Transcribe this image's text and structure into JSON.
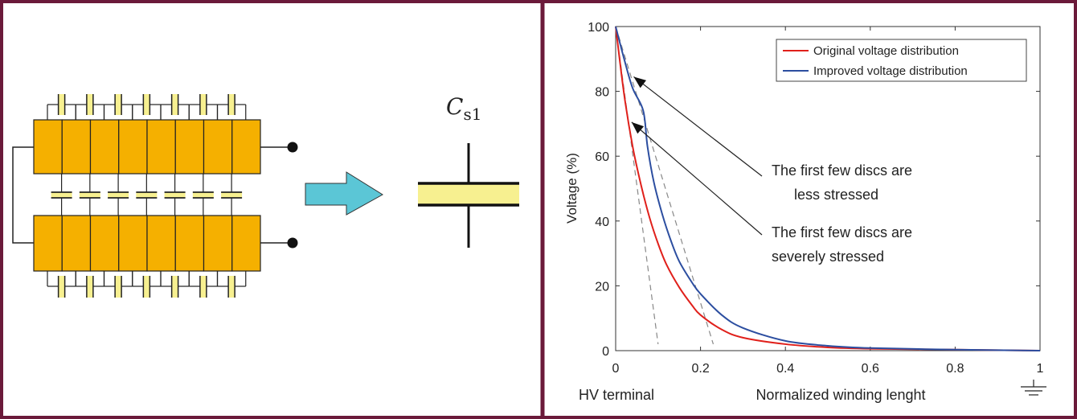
{
  "colors": {
    "frame": "#6b1a3a",
    "disc_fill": "#f5b000",
    "cap_fill": "#f7f090",
    "arrow_fill": "#5bc6d6",
    "original": "#e0201b",
    "improved": "#2c4ea0",
    "dashed": "#888888"
  },
  "left_panel": {
    "capacitor_label_main": "C",
    "capacitor_label_sub": "s1"
  },
  "right_panel": {
    "y_axis_label": "Voltage (%)",
    "x_axis_label": "Normalized winding lenght",
    "hv_label": "HV terminal",
    "annotation_top_line1": "The first few discs are",
    "annotation_top_line2": "less stressed",
    "annotation_bottom_line1": "The first few discs are",
    "annotation_bottom_line2": "severely stressed"
  },
  "chart_data": {
    "type": "line",
    "xlabel": "Normalized winding lenght",
    "ylabel": "Voltage (%)",
    "xlim": [
      0,
      1
    ],
    "ylim": [
      0,
      100
    ],
    "xticks": [
      0,
      0.2,
      0.4,
      0.6,
      0.8,
      1
    ],
    "xtick_labels": [
      "0",
      "0.2",
      "0.4",
      "0.6",
      "0.8",
      "1"
    ],
    "yticks": [
      0,
      20,
      40,
      60,
      80,
      100
    ],
    "ytick_labels": [
      "0",
      "20",
      "40",
      "60",
      "80",
      "100"
    ],
    "legend_position": "top-right",
    "series": [
      {
        "name": "Original voltage distribution",
        "x": [
          0,
          0.02,
          0.04,
          0.06,
          0.08,
          0.1,
          0.12,
          0.15,
          0.18,
          0.2,
          0.25,
          0.3,
          0.4,
          0.5,
          0.6,
          0.8,
          1.0
        ],
        "y": [
          100,
          79,
          63,
          51,
          41,
          33,
          26.5,
          19.5,
          14,
          11,
          6.5,
          4,
          2,
          1,
          0.6,
          0.3,
          0
        ]
      },
      {
        "name": "Improved voltage distribution",
        "x": [
          0,
          0.02,
          0.04,
          0.065,
          0.075,
          0.09,
          0.11,
          0.13,
          0.15,
          0.18,
          0.2,
          0.25,
          0.3,
          0.4,
          0.5,
          0.6,
          0.8,
          1.0
        ],
        "y": [
          100,
          90,
          81,
          74,
          63,
          52,
          42,
          34,
          27.5,
          21,
          17.5,
          11,
          7,
          3,
          1.5,
          0.8,
          0.3,
          0
        ]
      }
    ],
    "reference_lines": [
      {
        "x": [
          0,
          0.1
        ],
        "y": [
          100,
          2
        ]
      },
      {
        "x": [
          0,
          0.23
        ],
        "y": [
          100,
          2
        ]
      }
    ],
    "annotations": [
      {
        "text": "The first few discs are less stressed",
        "target": [
          0.035,
          85
        ]
      },
      {
        "text": "The first few discs are severely stressed",
        "target": [
          0.03,
          71
        ]
      }
    ]
  }
}
